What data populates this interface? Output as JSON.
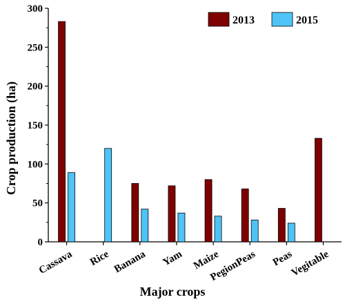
{
  "chart_data": {
    "type": "bar",
    "title": "",
    "xlabel": "Major crops",
    "ylabel": "Crop production (ha)",
    "ylim": [
      0,
      300
    ],
    "yticks": [
      0,
      50,
      100,
      150,
      200,
      250,
      300
    ],
    "grid": false,
    "legend_position": "top-right",
    "categories": [
      "Cassava",
      "Rice",
      "Banana",
      "Yam",
      "Maize",
      "PegionPeas",
      "Peas",
      "Vegitable"
    ],
    "series": [
      {
        "name": "2013",
        "color": "#7f0000",
        "values": [
          283,
          0,
          75,
          72,
          80,
          68,
          43,
          133
        ]
      },
      {
        "name": "2015",
        "color": "#4fc3f7",
        "values": [
          89,
          120,
          42,
          37,
          33,
          28,
          24,
          0
        ]
      }
    ]
  }
}
